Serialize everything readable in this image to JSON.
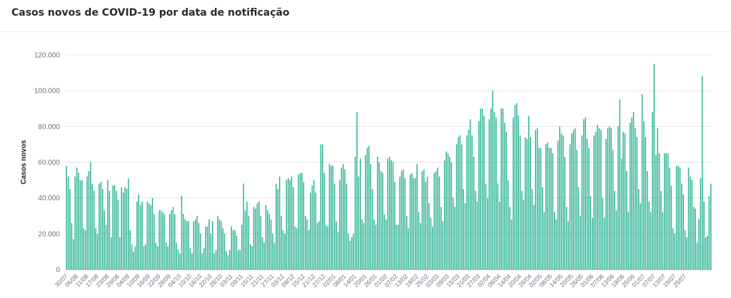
{
  "title": "Casos novos de COVID-19 por data de notificação",
  "chart_data": {
    "type": "bar",
    "title": "Casos novos de COVID-19 por data de notificação",
    "xlabel": "",
    "ylabel": "Casos novos",
    "ylim": [
      0,
      120000
    ],
    "yticks": [
      "0",
      "20.000",
      "40.000",
      "60.000",
      "80.000",
      "100.000",
      "120.000"
    ],
    "ytick_values": [
      0,
      20000,
      40000,
      60000,
      80000,
      100000,
      120000
    ],
    "grid": "horizontal",
    "legend": "none",
    "bar_color": "#2bb391",
    "start_date": "2020-07-30",
    "xtick_labels": [
      "30/07",
      "05/08",
      "11/08",
      "17/08",
      "23/08",
      "29/08",
      "04/09",
      "10/09",
      "16/09",
      "22/09",
      "28/09",
      "04/10",
      "10/10",
      "16/10",
      "22/10",
      "28/10",
      "03/11",
      "09/11",
      "15/11",
      "21/11",
      "27/11",
      "03/12",
      "09/12",
      "15/12",
      "21/12",
      "27/12",
      "02/01",
      "08/01",
      "14/01",
      "20/01",
      "26/01",
      "01/02",
      "07/02",
      "13/02",
      "19/02",
      "25/02",
      "03/03",
      "09/03",
      "15/03",
      "21/03",
      "27/03",
      "02/04",
      "08/04",
      "14/04",
      "20/04",
      "26/04",
      "02/05",
      "08/05",
      "14/05",
      "20/05",
      "26/05",
      "01/06",
      "07/06",
      "13/06",
      "19/06",
      "25/06",
      "01/07",
      "07/07",
      "13/07",
      "19/07",
      "25/07"
    ],
    "values": [
      57800,
      52000,
      45000,
      26000,
      17000,
      52000,
      57000,
      54000,
      50000,
      50000,
      23000,
      22000,
      52000,
      55000,
      60000,
      48000,
      44000,
      23000,
      20000,
      48000,
      49000,
      45000,
      33000,
      25000,
      50000,
      44000,
      18000,
      47000,
      47000,
      44000,
      39000,
      18000,
      46000,
      43000,
      46000,
      45000,
      51000,
      22000,
      14000,
      10000,
      13000,
      38000,
      42000,
      36000,
      38000,
      13000,
      14000,
      38000,
      37000,
      36000,
      40000,
      31000,
      15000,
      13000,
      33000,
      33000,
      32000,
      31000,
      15000,
      13000,
      31000,
      33000,
      35000,
      31000,
      15000,
      11000,
      9000,
      41000,
      31000,
      28000,
      27000,
      27000,
      12000,
      9000,
      27000,
      28000,
      30000,
      26000,
      20000,
      9000,
      12000,
      24000,
      24000,
      28000,
      20000,
      27000,
      9000,
      11000,
      30000,
      28000,
      27000,
      23000,
      20000,
      10000,
      8000,
      11000,
      24000,
      22000,
      22000,
      19000,
      11000,
      11000,
      25000,
      48000,
      33000,
      38000,
      30000,
      14000,
      13000,
      35000,
      34000,
      37000,
      38000,
      30000,
      18000,
      15000,
      36000,
      33000,
      31000,
      28000,
      20000,
      15000,
      48000,
      45000,
      52000,
      30000,
      22000,
      20000,
      50000,
      51000,
      50000,
      52000,
      46000,
      24000,
      23000,
      53000,
      54000,
      54000,
      49000,
      30000,
      28000,
      22000,
      43000,
      47000,
      50000,
      43000,
      26000,
      27000,
      70000,
      70000,
      54000,
      25000,
      24000,
      59000,
      58000,
      58000,
      48000,
      27000,
      21000,
      50000,
      57000,
      59000,
      56000,
      48000,
      20000,
      16000,
      18000,
      20000,
      63000,
      88000,
      52000,
      62000,
      28000,
      26000,
      64000,
      68000,
      69000,
      59000,
      45000,
      28000,
      25000,
      63000,
      60000,
      55000,
      54000,
      31000,
      28000,
      62000,
      63000,
      61000,
      60000,
      49000,
      25000,
      25000,
      52000,
      55000,
      56000,
      51000,
      30000,
      23000,
      53000,
      54000,
      51000,
      51000,
      59000,
      32000,
      26000,
      55000,
      56000,
      49000,
      52000,
      37000,
      29000,
      24000,
      54000,
      55000,
      57000,
      52000,
      35000,
      27000,
      61000,
      66000,
      65000,
      63000,
      60000,
      40000,
      35000,
      70000,
      74000,
      75000,
      70000,
      45000,
      37000,
      75000,
      78000,
      84000,
      75000,
      63000,
      44000,
      38000,
      83000,
      90000,
      90000,
      86000,
      48000,
      40000,
      84000,
      90000,
      100000,
      88000,
      85000,
      48000,
      38000,
      90000,
      90000,
      82000,
      77000,
      50000,
      35000,
      28000,
      85000,
      92000,
      93000,
      86000,
      75000,
      44000,
      39000,
      74000,
      73000,
      86000,
      74000,
      45000,
      36000,
      78000,
      79000,
      68000,
      68000,
      46000,
      32000,
      70000,
      71000,
      68000,
      68000,
      65000,
      32000,
      28000,
      72000,
      80000,
      76000,
      75000,
      63000,
      35000,
      27000,
      70000,
      76000,
      78000,
      79000,
      67000,
      46000,
      30000,
      75000,
      84000,
      85000,
      73000,
      68000,
      41000,
      29000,
      75000,
      77000,
      81000,
      79000,
      78000,
      40000,
      29000,
      73000,
      79000,
      80000,
      79000,
      67000,
      44000,
      33000,
      80000,
      95000,
      62000,
      77000,
      76000,
      55000,
      32000,
      82000,
      85000,
      88000,
      79000,
      74000,
      45000,
      37000,
      98000,
      83000,
      74000,
      55000,
      38000,
      32000,
      88000,
      115000,
      64000,
      79000,
      65000,
      44000,
      32000,
      65000,
      65000,
      65000,
      57000,
      47000,
      23000,
      20000,
      58000,
      58000,
      57000,
      48000,
      42000,
      22000,
      18000,
      57000,
      52000,
      50000,
      35000,
      34000,
      15000,
      28000,
      51000,
      108000,
      38000,
      18000,
      19000,
      41000,
      48000
    ]
  }
}
